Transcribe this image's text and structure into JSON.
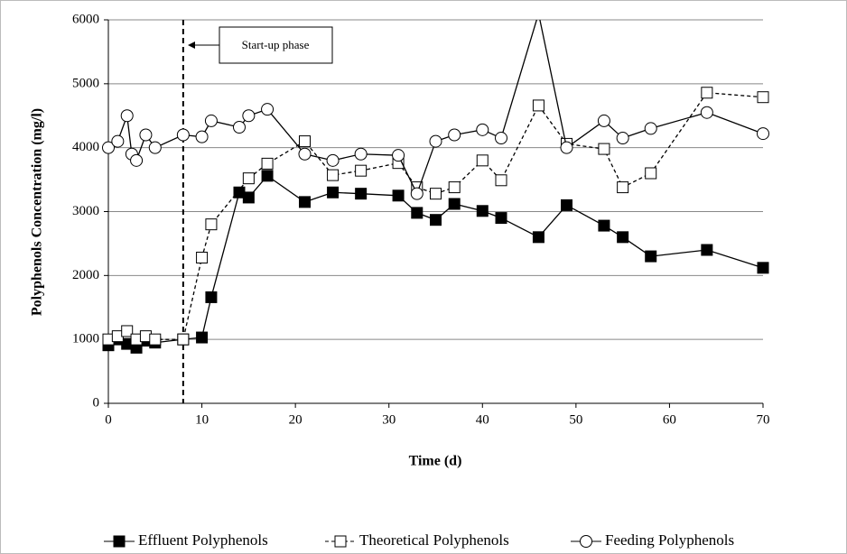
{
  "chart_data": {
    "type": "line",
    "xlabel": "Time (d)",
    "ylabel": "Polyphenols Concentration (mg/l)",
    "xlim": [
      0,
      70
    ],
    "xticks": [
      0,
      10,
      20,
      30,
      40,
      50,
      60,
      70
    ],
    "ylim": [
      0,
      6000
    ],
    "yticks": [
      0,
      1000,
      2000,
      3000,
      4000,
      5000,
      6000
    ],
    "grid": true,
    "legend": "bottom",
    "vline_x": 8,
    "annotation": "Start-up phase",
    "series": [
      {
        "name": "Effluent Polyphenols",
        "color": "#000000",
        "marker": "filled-square",
        "dash": "solid",
        "x": [
          0,
          1,
          2,
          3,
          4,
          5,
          8,
          10,
          11,
          14,
          15,
          17,
          21,
          24,
          27,
          31,
          33,
          35,
          37,
          40,
          42,
          46,
          49,
          53,
          55,
          58,
          64,
          70
        ],
        "values": [
          908,
          1000,
          930,
          870,
          980,
          950,
          1000,
          1030,
          1660,
          3300,
          3220,
          3560,
          3150,
          3300,
          3280,
          3250,
          2980,
          2870,
          3120,
          3010,
          2900,
          2600,
          3100,
          2780,
          2600,
          2300,
          2400,
          2120
        ]
      },
      {
        "name": "Theoretical Polyphenols",
        "color": "#000000",
        "marker": "open-square",
        "dash": "dashed",
        "x": [
          0,
          1,
          2,
          3,
          4,
          5,
          8,
          10,
          11,
          15,
          17,
          21,
          24,
          27,
          31,
          33,
          35,
          37,
          40,
          42,
          46,
          49,
          53,
          55,
          58,
          64,
          70
        ],
        "values": [
          1000,
          1050,
          1130,
          1000,
          1050,
          1000,
          1000,
          2280,
          2800,
          3520,
          3750,
          4100,
          3570,
          3640,
          3760,
          3380,
          3280,
          3380,
          3800,
          3490,
          4660,
          4060,
          3980,
          3380,
          3600,
          4860,
          4790
        ]
      },
      {
        "name": "Feeding Polyphenols",
        "color": "#000000",
        "marker": "open-circle",
        "dash": "solid",
        "x": [
          0,
          1,
          2,
          2.5,
          3,
          4,
          5,
          8,
          10,
          11,
          14,
          15,
          17,
          21,
          24,
          27,
          31,
          33,
          35,
          37,
          40,
          42,
          46,
          49,
          53,
          55,
          58,
          64,
          70
        ],
        "values": [
          4000,
          4100,
          4500,
          3900,
          3800,
          4200,
          4000,
          4200,
          4170,
          4420,
          4320,
          4500,
          4600,
          3900,
          3800,
          3900,
          3880,
          3280,
          4100,
          4200,
          4280,
          4150,
          6100,
          4000,
          4420,
          4150,
          4300,
          4550,
          4220
        ]
      }
    ]
  }
}
